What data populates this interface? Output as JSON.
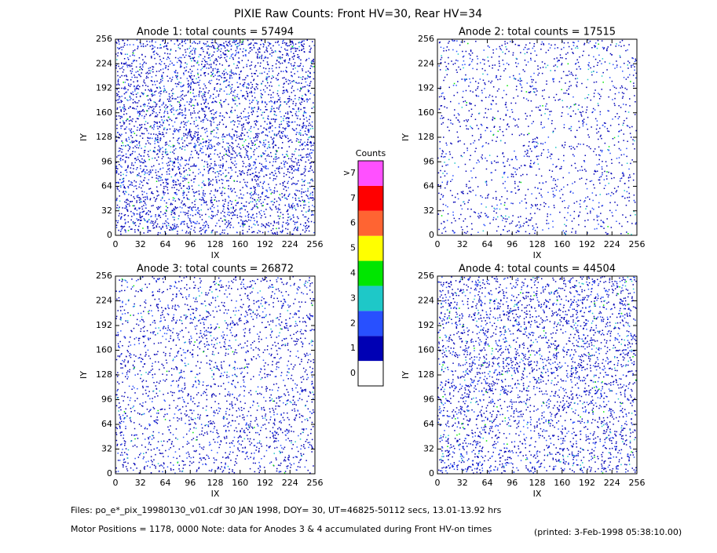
{
  "title": "PIXIE Raw Counts:  Front HV=30, Rear HV=34",
  "chart_data": [
    {
      "type": "heatmap",
      "title": "Anode 1: total counts = 57494",
      "x_label": "IX",
      "y_label": "IY",
      "xlim": [
        0,
        256
      ],
      "ylim": [
        0,
        256
      ],
      "xticks": [
        0,
        32,
        64,
        96,
        128,
        160,
        192,
        224,
        256
      ],
      "yticks": [
        0,
        32,
        64,
        96,
        128,
        160,
        192,
        224,
        256
      ]
    },
    {
      "type": "heatmap",
      "title": "Anode 2: total counts = 17515",
      "x_label": "IX",
      "y_label": "IY",
      "xlim": [
        0,
        256
      ],
      "ylim": [
        0,
        256
      ],
      "xticks": [
        0,
        32,
        64,
        96,
        128,
        160,
        192,
        224,
        256
      ],
      "yticks": [
        0,
        32,
        64,
        96,
        128,
        160,
        192,
        224,
        256
      ]
    },
    {
      "type": "heatmap",
      "title": "Anode 3: total counts = 26872",
      "x_label": "IX",
      "y_label": "IY",
      "xlim": [
        0,
        256
      ],
      "ylim": [
        0,
        256
      ],
      "xticks": [
        0,
        32,
        64,
        96,
        128,
        160,
        192,
        224,
        256
      ],
      "yticks": [
        0,
        32,
        64,
        96,
        128,
        160,
        192,
        224,
        256
      ]
    },
    {
      "type": "heatmap",
      "title": "Anode 4: total counts = 44504",
      "x_label": "IX",
      "y_label": "IY",
      "xlim": [
        0,
        256
      ],
      "ylim": [
        0,
        256
      ],
      "xticks": [
        0,
        32,
        64,
        96,
        128,
        160,
        192,
        224,
        256
      ],
      "yticks": [
        0,
        32,
        64,
        96,
        128,
        160,
        192,
        224,
        256
      ]
    }
  ],
  "colorbar": {
    "title": "Counts",
    "labels": [
      "0",
      "1",
      "2",
      "3",
      "4",
      "5",
      "6",
      "7",
      ">7"
    ],
    "colors": [
      "#ffffff",
      "#0000b4",
      "#2850ff",
      "#1ec8c8",
      "#00e600",
      "#ffff00",
      "#ff6432",
      "#ff0000",
      "#ff50ff"
    ]
  },
  "footer": {
    "files": "Files: po_e*_pix_19980130_v01.cdf    30 JAN 1998, DOY= 30, UT=46825-50112 secs, 13.01-13.92 hrs",
    "motor": "Motor Positions = 1178, 0000   Note: data for Anodes 3 & 4 accumulated during Front HV-on times",
    "printed": "(printed:  3-Feb-1998 05:38:10.00)"
  }
}
